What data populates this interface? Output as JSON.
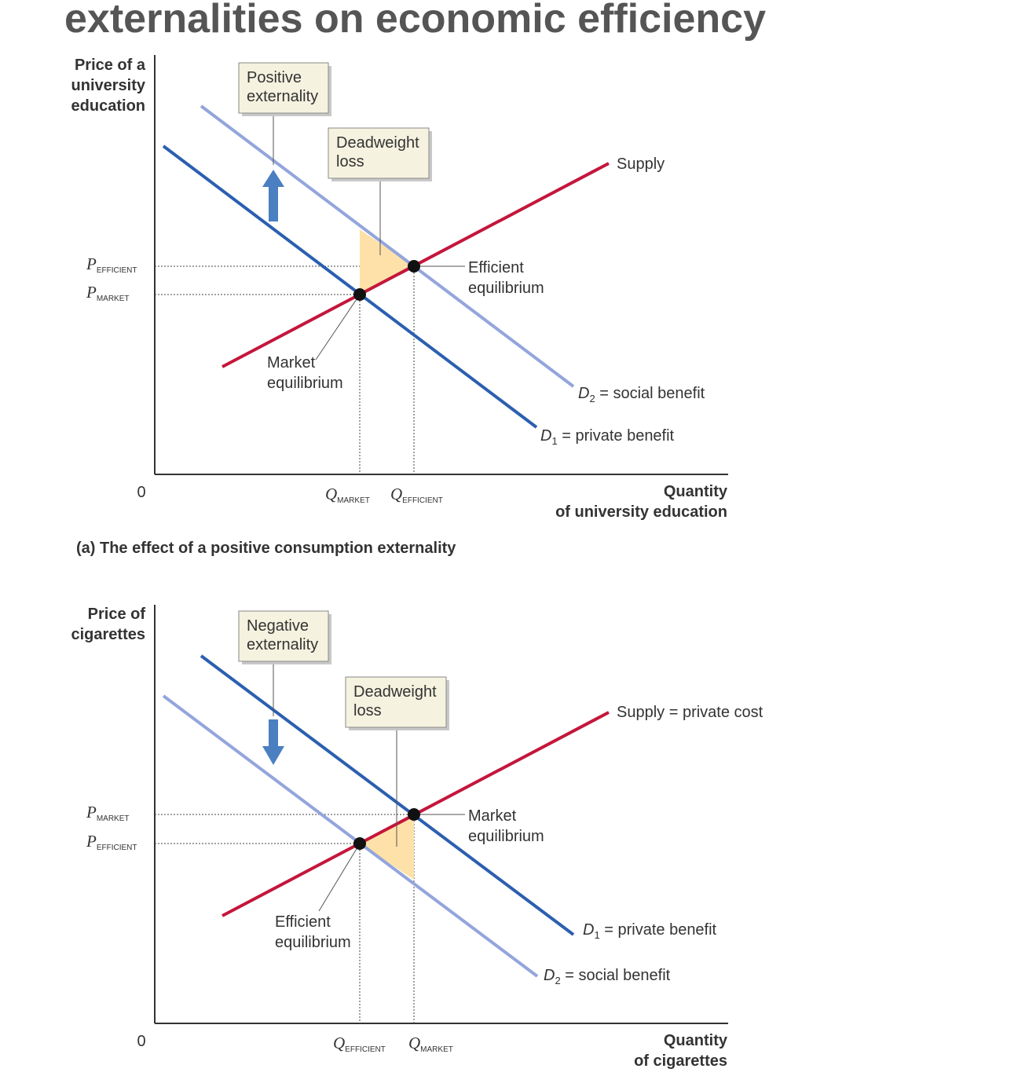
{
  "title": "externalities on economic efficiency",
  "colors": {
    "supply": "#c4163c",
    "d_dark": "#2b5fb0",
    "d_light": "#93a5dc",
    "dwl_fill": "#fde1a8",
    "arrow": "#4a7fc1",
    "box_fill": "#f5f2e0",
    "box_shadow": "#c8c8c8"
  },
  "chart_data": [
    {
      "type": "line",
      "caption": "(a) The effect of a positive consumption externality",
      "ylabel": [
        "Price of a",
        "university",
        "education"
      ],
      "xlabel": [
        "Quantity",
        "of university education"
      ],
      "origin_label": "0",
      "y_ticks": [
        {
          "name": "P",
          "sub": "EFFICIENT"
        },
        {
          "name": "P",
          "sub": "MARKET"
        }
      ],
      "x_ticks": [
        {
          "name": "Q",
          "sub": "MARKET"
        },
        {
          "name": "Q",
          "sub": "EFFICIENT"
        }
      ],
      "series": [
        {
          "name": "Supply",
          "label": "Supply"
        },
        {
          "name": "D1",
          "label_main": "D",
          "label_sub": "1",
          "label_rest": " = private benefit"
        },
        {
          "name": "D2",
          "label_main": "D",
          "label_sub": "2",
          "label_rest": " = social benefit"
        }
      ],
      "annotations": {
        "externality": [
          "Positive",
          "externality"
        ],
        "deadweight": [
          "Deadweight",
          "loss"
        ],
        "point_high": [
          "Efficient",
          "equilibrium"
        ],
        "point_low": [
          "Market",
          "equilibrium"
        ]
      }
    },
    {
      "type": "line",
      "caption": "",
      "ylabel": [
        "Price of",
        "cigarettes"
      ],
      "xlabel": [
        "Quantity",
        "of cigarettes"
      ],
      "origin_label": "0",
      "y_ticks": [
        {
          "name": "P",
          "sub": "MARKET"
        },
        {
          "name": "P",
          "sub": "EFFICIENT"
        }
      ],
      "x_ticks": [
        {
          "name": "Q",
          "sub": "EFFICIENT"
        },
        {
          "name": "Q",
          "sub": "MARKET"
        }
      ],
      "series": [
        {
          "name": "Supply",
          "label": "Supply = private cost"
        },
        {
          "name": "D1",
          "label_main": "D",
          "label_sub": "1",
          "label_rest": " = private benefit"
        },
        {
          "name": "D2",
          "label_main": "D",
          "label_sub": "2",
          "label_rest": " = social benefit"
        }
      ],
      "annotations": {
        "externality": [
          "Negative",
          "externality"
        ],
        "deadweight": [
          "Deadweight",
          "loss"
        ],
        "point_high": [
          "Market",
          "equilibrium"
        ],
        "point_low": [
          "Efficient",
          "equilibrium"
        ]
      }
    }
  ]
}
